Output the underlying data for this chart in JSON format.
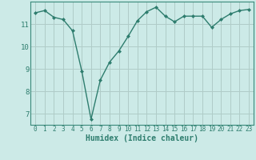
{
  "x": [
    0,
    1,
    2,
    3,
    4,
    5,
    6,
    7,
    8,
    9,
    10,
    11,
    12,
    13,
    14,
    15,
    16,
    17,
    18,
    19,
    20,
    21,
    22,
    23
  ],
  "y": [
    11.5,
    11.6,
    11.3,
    11.2,
    10.7,
    8.9,
    6.75,
    8.5,
    9.3,
    9.8,
    10.45,
    11.15,
    11.55,
    11.75,
    11.35,
    11.1,
    11.35,
    11.35,
    11.35,
    10.85,
    11.2,
    11.45,
    11.6,
    11.65
  ],
  "xlabel": "Humidex (Indice chaleur)",
  "bg_color": "#cceae7",
  "line_color": "#2e7d6e",
  "grid_color": "#b0ccc8",
  "axis_color": "#2e7d6e",
  "spine_color": "#3a8a7a",
  "xlim": [
    -0.5,
    23.5
  ],
  "ylim": [
    6.5,
    12.0
  ],
  "yticks": [
    7,
    8,
    9,
    10,
    11
  ],
  "xticks": [
    0,
    1,
    2,
    3,
    4,
    5,
    6,
    7,
    8,
    9,
    10,
    11,
    12,
    13,
    14,
    15,
    16,
    17,
    18,
    19,
    20,
    21,
    22,
    23
  ],
  "xlabel_fontsize": 7,
  "xlabel_bold": true,
  "ytick_fontsize": 6.5,
  "xtick_fontsize": 5.5,
  "line_width": 1.0,
  "marker_size": 2.0
}
